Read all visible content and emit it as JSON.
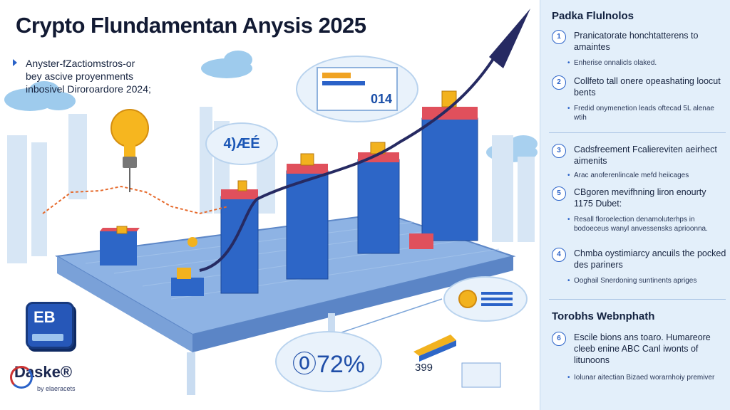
{
  "title": "Crypto Flundamentan Anysis 2025",
  "intro": [
    "Anyster-fZactiomstros-or",
    "bey ascive proyenments",
    "inbosivel Diroroardore 2024;"
  ],
  "scene": {
    "bubble_screen_value": "014",
    "bubble_mid_value": "4)ÆÉ",
    "bubble_percent_value": "⓪72%",
    "small_value": "399",
    "logo_badge": "EB",
    "brand_name": "Daske®",
    "brand_tagline": "by elaeracets"
  },
  "colors": {
    "bar_blue": "#2d66c7",
    "bar_top_red": "#e0505c",
    "arrow_navy": "#262a62",
    "platform_blue": "#8eb3e4",
    "accent_blue": "#2a62c8"
  },
  "sidebar": {
    "heading_top": "Padka Flulnolos",
    "items": [
      {
        "num": "1",
        "title": "Pranicatorate honchtatterens to amaintes",
        "sub": "Enherise onnalicls olaked."
      },
      {
        "num": "2",
        "title": "Collfeto tall onere opeashating loocut bents",
        "sub": "Fredid onymenetion leads oftecad 5L alenae wtih"
      },
      {
        "num": "3",
        "title": "Cadsfreement Fcaliereviten aeirhect aimenits",
        "sub": "Arac anoferenlincale mefd heiicages"
      },
      {
        "num": "5",
        "title": "CBgoren mevifhning liron enourty 1175 Dubet:",
        "sub": "Resall floroelection denamoluterhps in bodoeceus wanyl anvessensks aprioonna."
      },
      {
        "num": "4",
        "title": "Chmba oystimiarcy ancuils the pocked des pariners",
        "sub": "Ooghail Snerdoning suntinents apriges"
      }
    ],
    "heading_bottom": "Torobhs Webnphath",
    "bottom_items": [
      {
        "num": "6",
        "title": "Escile bions ans toaro. Humareore cleeb enine ABC Canl iwonts of litunoons",
        "sub": "Iolunar aitectian Bizaed worarnhoiy premiver"
      }
    ]
  }
}
